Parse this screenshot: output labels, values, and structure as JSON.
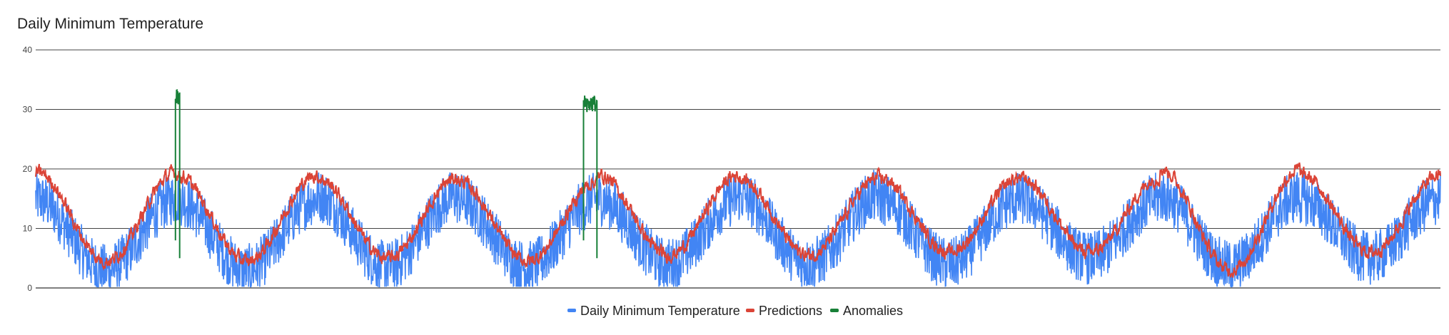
{
  "chart_data": {
    "type": "line",
    "title": "Daily Minimum Temperature",
    "ylim": [
      0,
      40
    ],
    "yticks": [
      0,
      10,
      20,
      30,
      40
    ],
    "grid": true,
    "legend_position": "bottom",
    "x_points": 3650,
    "series": [
      {
        "name": "Daily Minimum Temperature",
        "color": "#4285F4",
        "seasonal_profile": {
          "description_values": "yearly cycle approx 10 years",
          "yearly_max": [
            15,
            15,
            15.5,
            15,
            15,
            15.5,
            15,
            15,
            15.5,
            15
          ],
          "yearly_min": [
            3,
            3,
            3.5,
            3.5,
            4,
            4,
            4,
            5,
            3.5,
            5
          ]
        }
      },
      {
        "name": "Predictions",
        "color": "#DB4437",
        "seasonal_profile": {
          "yearly_max": [
            19.5,
            19,
            18.5,
            18,
            19,
            18.5,
            18.5,
            18.5,
            20,
            19
          ],
          "yearly_min": [
            4.5,
            4.5,
            5,
            4.5,
            5.5,
            5.5,
            6,
            6,
            3,
            6
          ]
        }
      },
      {
        "name": "Anomalies",
        "color": "#188038",
        "segments": [
          {
            "start_index": 363,
            "end_index": 374,
            "level": 32
          },
          {
            "start_index": 1423,
            "end_index": 1458,
            "level": 31
          }
        ]
      }
    ]
  }
}
